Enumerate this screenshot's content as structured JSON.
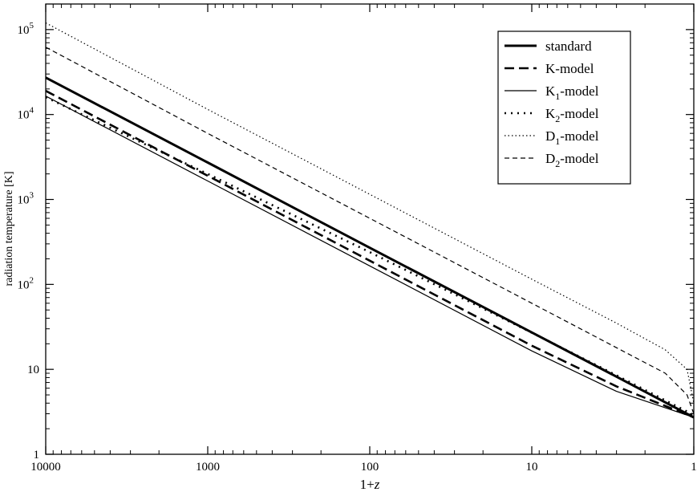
{
  "chart_data": {
    "type": "line",
    "title": "",
    "xlabel_prefix": "1+",
    "xlabel_var": "z",
    "ylabel": "radiation temperature [K]",
    "x_scale": "log",
    "y_scale": "log",
    "x_reversed": true,
    "xlim": [
      10000,
      1
    ],
    "ylim": [
      1,
      200000
    ],
    "grid": false,
    "legend_position": "top-right",
    "x_ticks": [
      {
        "value": 10000,
        "label": "10000"
      },
      {
        "value": 1000,
        "label": "1000"
      },
      {
        "value": 100,
        "label": "100"
      },
      {
        "value": 10,
        "label": "10"
      },
      {
        "value": 1,
        "label": "1"
      }
    ],
    "y_ticks": [
      {
        "value": 1,
        "base": "1",
        "exp": ""
      },
      {
        "value": 10,
        "base": "10",
        "exp": ""
      },
      {
        "value": 100,
        "base": "10",
        "exp": "2"
      },
      {
        "value": 1000,
        "base": "10",
        "exp": "3"
      },
      {
        "value": 10000,
        "base": "10",
        "exp": "4"
      },
      {
        "value": 100000,
        "base": "10",
        "exp": "5"
      }
    ],
    "series": [
      {
        "name": "standard",
        "legend_main": "standard",
        "legend_sub": "",
        "legend_rest": "",
        "stroke": "#000000",
        "width": 3,
        "dash": "",
        "x": [
          10000,
          1000,
          100,
          10,
          3,
          1
        ],
        "y": [
          27200,
          2720,
          270,
          27.2,
          8.2,
          2.72
        ]
      },
      {
        "name": "K-model",
        "legend_main": "K-model",
        "legend_sub": "",
        "legend_rest": "",
        "stroke": "#000000",
        "width": 2.6,
        "dash": "12,6",
        "x": [
          10000,
          1000,
          100,
          10,
          3,
          1
        ],
        "y": [
          19000,
          1900,
          190,
          19,
          6.3,
          2.72
        ]
      },
      {
        "name": "K1-model",
        "legend_main": "K",
        "legend_sub": "1",
        "legend_rest": "-model",
        "stroke": "#000000",
        "width": 1.2,
        "dash": "",
        "x": [
          10000,
          1000,
          100,
          10,
          3,
          1
        ],
        "y": [
          16500,
          1650,
          165,
          16.5,
          5.5,
          2.72
        ]
      },
      {
        "name": "K2-model",
        "legend_main": "K",
        "legend_sub": "2",
        "legend_rest": "-model",
        "stroke": "#000000",
        "width": 2.6,
        "dash": "2,6",
        "x": [
          10000,
          1000,
          100,
          10,
          3,
          1
        ],
        "y": [
          16000,
          2000,
          240,
          27,
          8.5,
          2.9
        ]
      },
      {
        "name": "D1-model",
        "legend_main": "D",
        "legend_sub": "1",
        "legend_rest": "-model",
        "stroke": "#000000",
        "width": 1.2,
        "dash": "1.5,3",
        "x": [
          10000,
          1000,
          100,
          10,
          3,
          1.5,
          1.1,
          1
        ],
        "y": [
          120000,
          11500,
          1150,
          115,
          35,
          17,
          10,
          4
        ]
      },
      {
        "name": "D2-model",
        "legend_main": "D",
        "legend_sub": "2",
        "legend_rest": "-model",
        "stroke": "#000000",
        "width": 1.2,
        "dash": "6,4",
        "x": [
          10000,
          1000,
          100,
          10,
          3,
          1.5,
          1.1,
          1
        ],
        "y": [
          62000,
          6000,
          600,
          60,
          18,
          9,
          5,
          3
        ]
      }
    ]
  }
}
